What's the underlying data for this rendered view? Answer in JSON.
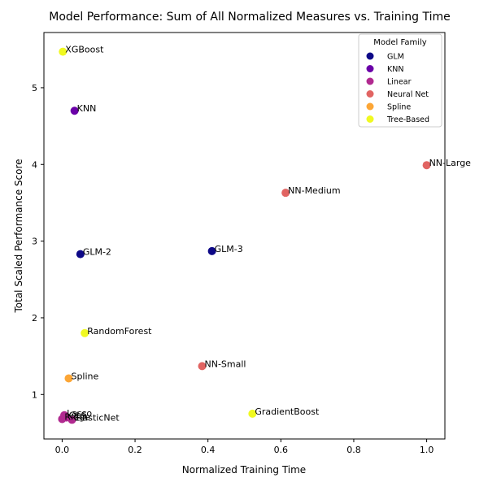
{
  "chart_data": {
    "type": "scatter",
    "title": "Model Performance: Sum of All Normalized Measures vs. Training Time",
    "xlabel": "Normalized Training Time",
    "ylabel": "Total Scaled Performance Score",
    "xlim": [
      -0.05,
      1.05
    ],
    "ylim": [
      0.42,
      5.72
    ],
    "xticks": [
      0.0,
      0.2,
      0.4,
      0.6,
      0.8,
      1.0
    ],
    "xtick_labels": [
      "0.0",
      "0.2",
      "0.4",
      "0.6",
      "0.8",
      "1.0"
    ],
    "yticks": [
      1,
      2,
      3,
      4,
      5
    ],
    "ytick_labels": [
      "1",
      "2",
      "3",
      "4",
      "5"
    ],
    "grid": false,
    "legend": {
      "title": "Model Family",
      "placement": "top-right",
      "entries": [
        {
          "name": "GLM",
          "color": "#0d0887"
        },
        {
          "name": "KNN",
          "color": "#6a00a8"
        },
        {
          "name": "Linear",
          "color": "#b12a90"
        },
        {
          "name": "Neural Net",
          "color": "#e16462"
        },
        {
          "name": "Spline",
          "color": "#fca636"
        },
        {
          "name": "Tree-Based",
          "color": "#f0f921"
        }
      ]
    },
    "points": [
      {
        "label": "XGBoost",
        "family": "Tree-Based",
        "x": 0.002,
        "y": 5.47
      },
      {
        "label": "KNN",
        "family": "KNN",
        "x": 0.034,
        "y": 4.7
      },
      {
        "label": "NN-Large",
        "family": "Neural Net",
        "x": 1.0,
        "y": 3.99
      },
      {
        "label": "NN-Medium",
        "family": "Neural Net",
        "x": 0.613,
        "y": 3.63
      },
      {
        "label": "GLM-2",
        "family": "GLM",
        "x": 0.05,
        "y": 2.83
      },
      {
        "label": "GLM-3",
        "family": "GLM",
        "x": 0.411,
        "y": 2.87
      },
      {
        "label": "RandomForest",
        "family": "Tree-Based",
        "x": 0.062,
        "y": 1.8
      },
      {
        "label": "NN-Small",
        "family": "Neural Net",
        "x": 0.384,
        "y": 1.37
      },
      {
        "label": "Spline",
        "family": "Spline",
        "x": 0.018,
        "y": 1.21
      },
      {
        "label": "GradientBoost",
        "family": "Tree-Based",
        "x": 0.522,
        "y": 0.75
      },
      {
        "label": "Lasso",
        "family": "Linear",
        "x": 0.006,
        "y": 0.73
      },
      {
        "label": "Ridge",
        "family": "Linear",
        "x": 0.0,
        "y": 0.68
      },
      {
        "label": "OLS",
        "family": "Linear",
        "x": 0.012,
        "y": 0.7
      },
      {
        "label": "ElasticNet",
        "family": "Linear",
        "x": 0.027,
        "y": 0.67
      }
    ]
  }
}
